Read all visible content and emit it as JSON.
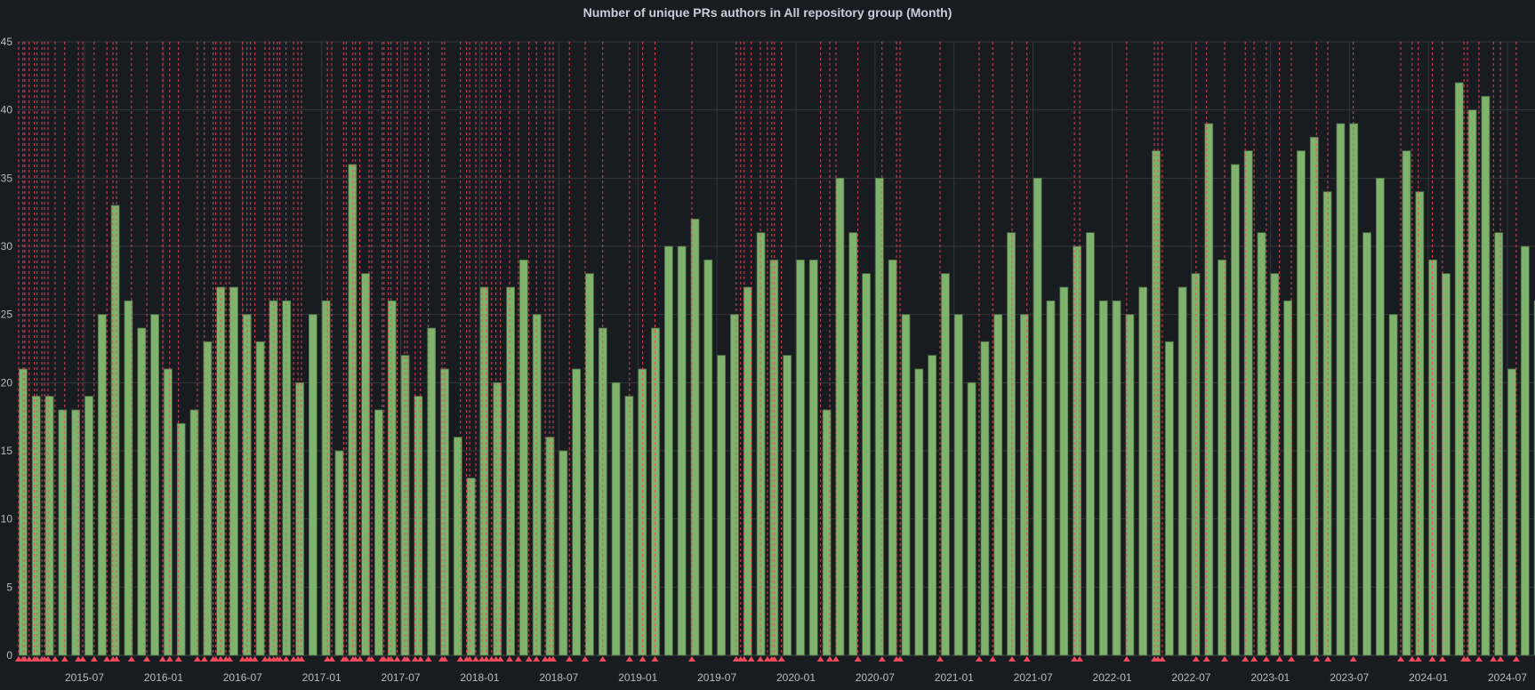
{
  "panel": {
    "title": "Number of unique PRs authors in All repository group (Month)"
  },
  "chart_data": {
    "type": "bar",
    "title": "Number of unique PRs authors in All repository group (Month)",
    "xlabel": "",
    "ylabel": "",
    "ylim": [
      0,
      45
    ],
    "grid": true,
    "legend": "none",
    "y_ticks": [
      "0",
      "5",
      "10",
      "15",
      "20",
      "25",
      "30",
      "35",
      "40",
      "45"
    ],
    "x_tick_labels": [
      "2015-07",
      "2016-01",
      "2016-07",
      "2017-01",
      "2017-07",
      "2018-01",
      "2018-07",
      "2019-01",
      "2019-07",
      "2020-01",
      "2020-07",
      "2021-01",
      "2021-07",
      "2022-01",
      "2022-07",
      "2023-01",
      "2023-07",
      "2024-01",
      "2024-07"
    ],
    "categories": [
      "2015-02",
      "2015-03",
      "2015-04",
      "2015-05",
      "2015-06",
      "2015-07",
      "2015-08",
      "2015-09",
      "2015-10",
      "2015-11",
      "2015-12",
      "2016-01",
      "2016-02",
      "2016-03",
      "2016-04",
      "2016-05",
      "2016-06",
      "2016-07",
      "2016-08",
      "2016-09",
      "2016-10",
      "2016-11",
      "2016-12",
      "2017-01",
      "2017-02",
      "2017-03",
      "2017-04",
      "2017-05",
      "2017-06",
      "2017-07",
      "2017-08",
      "2017-09",
      "2017-10",
      "2017-11",
      "2017-12",
      "2018-01",
      "2018-02",
      "2018-03",
      "2018-04",
      "2018-05",
      "2018-06",
      "2018-07",
      "2018-08",
      "2018-09",
      "2018-10",
      "2018-11",
      "2018-12",
      "2019-01",
      "2019-02",
      "2019-03",
      "2019-04",
      "2019-05",
      "2019-06",
      "2019-07",
      "2019-08",
      "2019-09",
      "2019-10",
      "2019-11",
      "2019-12",
      "2020-01",
      "2020-02",
      "2020-03",
      "2020-04",
      "2020-05",
      "2020-06",
      "2020-07",
      "2020-08",
      "2020-09",
      "2020-10",
      "2020-11",
      "2020-12",
      "2021-01",
      "2021-02",
      "2021-03",
      "2021-04",
      "2021-05",
      "2021-06",
      "2021-07",
      "2021-08",
      "2021-09",
      "2021-10",
      "2021-11",
      "2021-12",
      "2022-01",
      "2022-02",
      "2022-03",
      "2022-04",
      "2022-05",
      "2022-06",
      "2022-07",
      "2022-08",
      "2022-09",
      "2022-10",
      "2022-11",
      "2022-12",
      "2023-01",
      "2023-02",
      "2023-03",
      "2023-04",
      "2023-05",
      "2023-06",
      "2023-07",
      "2023-08",
      "2023-09",
      "2023-10",
      "2023-11",
      "2023-12",
      "2024-01",
      "2024-02",
      "2024-03",
      "2024-04",
      "2024-05",
      "2024-06",
      "2024-07",
      "2024-08",
      "2024-09"
    ],
    "values": [
      21,
      19,
      19,
      18,
      18,
      19,
      25,
      33,
      26,
      24,
      25,
      21,
      17,
      18,
      23,
      27,
      27,
      25,
      23,
      26,
      26,
      20,
      25,
      26,
      15,
      36,
      28,
      18,
      26,
      22,
      19,
      24,
      21,
      16,
      13,
      27,
      20,
      27,
      29,
      25,
      16,
      15,
      21,
      28,
      24,
      20,
      19,
      21,
      24,
      30,
      30,
      32,
      29,
      22,
      25,
      27,
      31,
      29,
      22,
      29,
      29,
      18,
      35,
      31,
      28,
      35,
      29,
      25,
      21,
      22,
      28,
      25,
      20,
      23,
      25,
      31,
      25,
      35,
      26,
      27,
      30,
      31,
      26,
      26,
      25,
      27,
      37,
      23,
      27,
      28,
      39,
      29,
      36,
      37,
      31,
      28,
      26,
      37,
      38,
      34,
      39,
      39,
      31,
      35,
      25,
      37,
      34,
      29,
      28,
      42,
      40,
      41,
      31,
      21,
      30,
      26
    ],
    "annotations": [
      "2015-02-01",
      "2015-02-11",
      "2015-02-15",
      "2015-02-25",
      "2015-03-07",
      "2015-03-13",
      "2015-03-24",
      "2015-03-30",
      "2015-04-08",
      "2015-04-24",
      "2015-05-16",
      "2015-06-17",
      "2015-06-27",
      "2015-07-23",
      "2015-08-22",
      "2015-09-06",
      "2015-09-14",
      "2015-10-18",
      "2015-11-23",
      "2015-12-29",
      "2016-01-15",
      "2016-02-05",
      "2016-03-18",
      "2016-04-04",
      "2016-04-24",
      "2016-04-30",
      "2016-05-11",
      "2016-05-23",
      "2016-06-01",
      "2016-07-01",
      "2016-07-11",
      "2016-07-19",
      "2016-07-29",
      "2016-08-22",
      "2016-09-02",
      "2016-09-12",
      "2016-09-20",
      "2016-09-26",
      "2016-10-10",
      "2016-10-27",
      "2016-11-07",
      "2016-11-15",
      "2017-01-14",
      "2017-01-24",
      "2017-02-21",
      "2017-02-27",
      "2017-03-12",
      "2017-03-18",
      "2017-03-28",
      "2017-04-19",
      "2017-04-25",
      "2017-05-19",
      "2017-05-23",
      "2017-06-03",
      "2017-06-09",
      "2017-06-23",
      "2017-07-10",
      "2017-07-16",
      "2017-08-04",
      "2017-08-16",
      "2017-09-04",
      "2017-10-05",
      "2017-10-11",
      "2017-11-17",
      "2017-12-01",
      "2017-12-08",
      "2017-12-22",
      "2018-01-06",
      "2018-01-16",
      "2018-01-28",
      "2018-02-08",
      "2018-02-18",
      "2018-03-09",
      "2018-03-29",
      "2018-04-23",
      "2018-05-10",
      "2018-05-30",
      "2018-06-10",
      "2018-06-18",
      "2018-07-25",
      "2018-09-01",
      "2018-10-11",
      "2018-12-12",
      "2019-01-12",
      "2019-02-10",
      "2019-05-04",
      "2019-08-15",
      "2019-08-25",
      "2019-09-03",
      "2019-09-19",
      "2019-10-10",
      "2019-10-26",
      "2019-11-06",
      "2019-11-12",
      "2019-11-28",
      "2020-02-27",
      "2020-03-18",
      "2020-04-02",
      "2020-05-22",
      "2020-07-17",
      "2020-08-20",
      "2020-08-28",
      "2020-11-29",
      "2021-02-28",
      "2021-03-29",
      "2021-05-13",
      "2021-06-17",
      "2021-10-05",
      "2021-10-17",
      "2022-02-04",
      "2022-04-07",
      "2022-04-15",
      "2022-04-25",
      "2022-07-12",
      "2022-08-06",
      "2022-09-17",
      "2022-11-04",
      "2022-11-24",
      "2022-12-22",
      "2023-01-22",
      "2023-02-19",
      "2023-04-16",
      "2023-05-12",
      "2023-07-10",
      "2023-10-28",
      "2023-11-24",
      "2023-12-08",
      "2024-01-10",
      "2024-02-03",
      "2024-03-22",
      "2024-03-30",
      "2024-04-26",
      "2024-05-29",
      "2024-06-15",
      "2024-07-21"
    ],
    "colors": {
      "bar": "#7eb26d",
      "bar_border": "#4e6e45",
      "annotation": "#f2495c",
      "background": "#181b1f",
      "grid": "#34373c"
    }
  }
}
